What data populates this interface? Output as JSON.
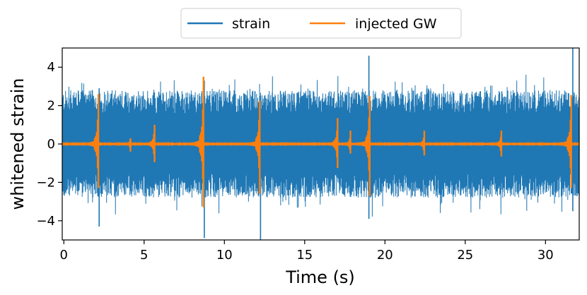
{
  "chart_data": {
    "type": "line",
    "xlabel": "Time (s)",
    "ylabel": "whitened strain",
    "xlim": [
      -0.1,
      32.1
    ],
    "ylim": [
      -5,
      5
    ],
    "xticks": [
      0,
      5,
      10,
      15,
      20,
      25,
      30
    ],
    "xtick_labels": [
      "0",
      "5",
      "10",
      "15",
      "20",
      "25",
      "30"
    ],
    "yticks": [
      -4,
      -2,
      0,
      2,
      4
    ],
    "ytick_labels": [
      "−4",
      "−2",
      "0",
      "2",
      "4"
    ],
    "grid": false,
    "legend_position": "above plot, centered",
    "series": [
      {
        "name": "strain",
        "color": "#1f77b4",
        "description": "whitened noise filling roughly +/-2.8, spikes to about +/-4.3",
        "band_min": -2.8,
        "band_max": 2.8,
        "peaks": [
          {
            "t": 8.75,
            "max": 3.3,
            "min": -4.9
          },
          {
            "t": 12.25,
            "max": 2.5,
            "min": -5.0
          },
          {
            "t": 19.0,
            "max": 4.6,
            "min": -3.9
          },
          {
            "t": 31.7,
            "max": 5.0,
            "min": -3.5
          },
          {
            "t": 2.2,
            "max": 2.9,
            "min": -4.3
          }
        ]
      },
      {
        "name": "injected GW",
        "color": "#ff7f0e",
        "description": "injected chirp signals, quiet elsewhere",
        "events": [
          {
            "t": 2.15,
            "max": 2.6,
            "min": -2.3
          },
          {
            "t": 4.15,
            "max": 0.3,
            "min": -0.4
          },
          {
            "t": 5.65,
            "max": 1.0,
            "min": -0.95
          },
          {
            "t": 8.7,
            "max": 3.5,
            "min": -3.3
          },
          {
            "t": 12.2,
            "max": 2.25,
            "min": -2.6
          },
          {
            "t": 17.05,
            "max": 1.35,
            "min": -1.25
          },
          {
            "t": 17.85,
            "max": 0.7,
            "min": -0.5
          },
          {
            "t": 19.05,
            "max": 2.5,
            "min": -2.7
          },
          {
            "t": 22.45,
            "max": 0.7,
            "min": -0.6
          },
          {
            "t": 27.25,
            "max": 0.7,
            "min": -0.65
          },
          {
            "t": 31.6,
            "max": 2.55,
            "min": -2.3
          }
        ]
      }
    ]
  }
}
